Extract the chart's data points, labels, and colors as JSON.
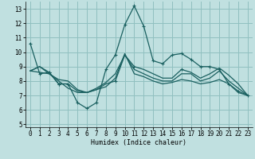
{
  "background_color": "#c0e0e0",
  "grid_color": "#90c0c0",
  "line_color": "#1a6060",
  "xlabel": "Humidex (Indice chaleur)",
  "xlim": [
    -0.5,
    23.5
  ],
  "ylim": [
    4.8,
    13.5
  ],
  "yticks": [
    5,
    6,
    7,
    8,
    9,
    10,
    11,
    12,
    13
  ],
  "xticks": [
    0,
    1,
    2,
    3,
    4,
    5,
    6,
    7,
    8,
    9,
    10,
    11,
    12,
    13,
    14,
    15,
    16,
    17,
    18,
    19,
    20,
    21,
    22,
    23
  ],
  "lines": [
    [
      10.6,
      8.5,
      8.6,
      7.8,
      7.8,
      6.5,
      6.1,
      6.5,
      8.8,
      9.8,
      11.9,
      13.2,
      11.8,
      9.4,
      9.2,
      9.8,
      9.9,
      9.5,
      9.0,
      9.0,
      8.8,
      7.8,
      7.3,
      7.0
    ],
    [
      8.7,
      9.0,
      8.6,
      7.8,
      7.8,
      7.3,
      7.2,
      7.4,
      7.8,
      8.0,
      9.8,
      9.0,
      8.8,
      8.5,
      8.2,
      8.2,
      8.8,
      8.6,
      8.2,
      8.5,
      8.9,
      8.4,
      7.8,
      7.0
    ],
    [
      8.7,
      9.0,
      8.5,
      8.1,
      8.0,
      7.4,
      7.2,
      7.5,
      7.9,
      8.5,
      9.8,
      8.8,
      8.5,
      8.2,
      8.0,
      8.0,
      8.5,
      8.5,
      8.0,
      8.2,
      8.7,
      8.0,
      7.5,
      7.0
    ],
    [
      8.7,
      8.6,
      8.5,
      8.0,
      7.5,
      7.2,
      7.2,
      7.4,
      7.6,
      8.2,
      9.9,
      8.5,
      8.3,
      8.0,
      7.8,
      7.9,
      8.1,
      8.0,
      7.8,
      7.9,
      8.1,
      7.8,
      7.2,
      7.0
    ]
  ],
  "marker_line": 0,
  "marker2_points": [
    2,
    3,
    4,
    5,
    6,
    7,
    8,
    9,
    10,
    11,
    12,
    13,
    14,
    15
  ]
}
